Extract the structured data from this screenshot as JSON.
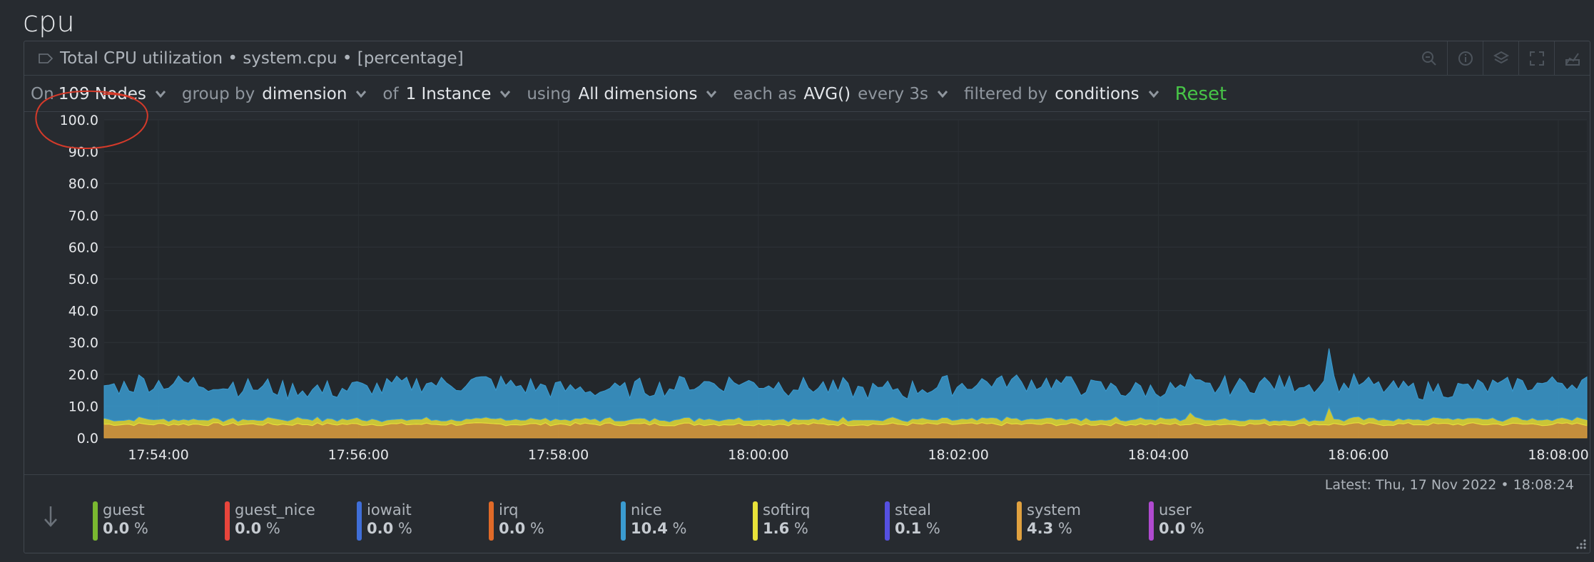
{
  "section": {
    "title": "cpu"
  },
  "chart": {
    "title": "Total CPU utilization • system.cpu • [percentage]"
  },
  "toolbar": {
    "on_label": "On",
    "nodes_value": "109 Nodes",
    "group_label": "group by",
    "group_value": "dimension",
    "of_label": "of",
    "instance_value": "1 Instance",
    "using_label": "using",
    "dims_value": "All dimensions",
    "each_label": "each as",
    "agg_value": "AVG()",
    "every_label": "every 3s",
    "filter_label": "filtered by",
    "filter_value": "conditions",
    "reset_label": "Reset"
  },
  "chart_data": {
    "type": "area",
    "stacked": true,
    "ylim": [
      0,
      100
    ],
    "y_ticks": [
      "100.0",
      "90.0",
      "80.0",
      "70.0",
      "60.0",
      "50.0",
      "40.0",
      "30.0",
      "20.0",
      "10.0",
      "0.0"
    ],
    "x_ticks": [
      "17:54:00",
      "17:56:00",
      "17:58:00",
      "18:00:00",
      "18:02:00",
      "18:04:00",
      "18:06:00",
      "18:08:00"
    ],
    "series": [
      {
        "name": "system",
        "color": "#e0a13f",
        "mean": 4.3
      },
      {
        "name": "softirq",
        "color": "#e8e23a",
        "mean": 1.6
      },
      {
        "name": "nice",
        "color": "#3a9bd0",
        "mean": 10.4
      }
    ]
  },
  "latest": {
    "text": "Latest:  Thu, 17 Nov 2022 • 18:08:24"
  },
  "legend": {
    "items": [
      {
        "name": "guest",
        "value": "0.0",
        "unit": "%",
        "color": "#7ab830"
      },
      {
        "name": "guest_nice",
        "value": "0.0",
        "unit": "%",
        "color": "#e8453c"
      },
      {
        "name": "iowait",
        "value": "0.0",
        "unit": "%",
        "color": "#3f6ed8"
      },
      {
        "name": "irq",
        "value": "0.0",
        "unit": "%",
        "color": "#e06a28"
      },
      {
        "name": "nice",
        "value": "10.4",
        "unit": "%",
        "color": "#3a9bd0"
      },
      {
        "name": "softirq",
        "value": "1.6",
        "unit": "%",
        "color": "#e8e23a"
      },
      {
        "name": "steal",
        "value": "0.1",
        "unit": "%",
        "color": "#5550e0"
      },
      {
        "name": "system",
        "value": "4.3",
        "unit": "%",
        "color": "#e0a13f"
      },
      {
        "name": "user",
        "value": "0.0",
        "unit": "%",
        "color": "#b04ad0"
      }
    ]
  }
}
